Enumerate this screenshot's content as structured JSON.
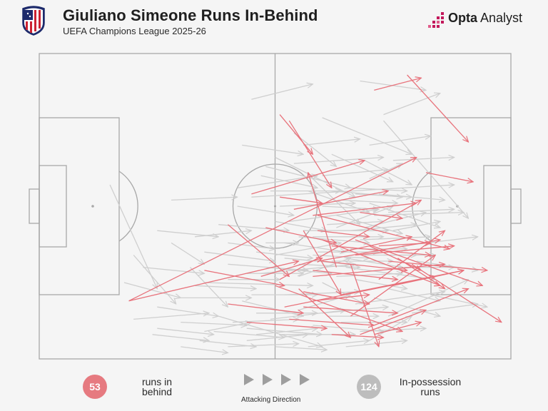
{
  "header": {
    "title": "Giuliano Simeone Runs In-Behind",
    "subtitle": "UEFA Champions League 2025-26",
    "brand_bold": "Opta",
    "brand_rest": " Analyst"
  },
  "legend": {
    "runs_in_behind_count": "53",
    "runs_in_behind_label_1": "runs in",
    "runs_in_behind_label_2": "behind",
    "in_possession_count": "124",
    "in_possession_label_1": "In-possession",
    "in_possession_label_2": "runs",
    "direction_label": "Attacking Direction"
  },
  "colors": {
    "in_behind": "#e8737c",
    "in_possession": "#cfcfcf",
    "pitch_lines": "#a8a8a8",
    "background": "#f5f5f5"
  },
  "chart_data": {
    "type": "scatter",
    "pitch": {
      "length": 100,
      "width": 100,
      "attacking_direction": "left-to-right"
    },
    "series": [
      {
        "name": "runs in behind",
        "runs": [
          [
            19,
            81,
            55,
            68
          ],
          [
            19,
            81,
            80,
            34
          ],
          [
            45,
            46,
            69,
            35
          ],
          [
            53,
            22,
            62,
            44
          ],
          [
            51,
            20,
            58,
            33
          ],
          [
            56,
            58,
            64,
            79
          ],
          [
            63,
            70,
            57,
            39
          ],
          [
            71,
            12,
            81,
            8
          ],
          [
            78,
            7,
            91,
            29
          ],
          [
            66,
            69,
            72,
            96
          ],
          [
            55,
            77,
            66,
            93
          ],
          [
            40,
            56,
            53,
            73
          ],
          [
            59,
            68,
            85,
            61
          ],
          [
            67,
            61,
            94,
            76
          ],
          [
            82,
            39,
            92,
            42
          ],
          [
            58,
            53,
            80,
            49
          ],
          [
            54,
            51,
            74,
            45
          ],
          [
            51,
            74,
            81,
            48
          ],
          [
            58,
            73,
            86,
            69
          ],
          [
            72,
            74,
            86,
            58
          ],
          [
            68,
            92,
            82,
            84
          ],
          [
            58,
            81,
            70,
            79
          ],
          [
            50,
            76,
            77,
            91
          ],
          [
            64,
            79,
            90,
            71
          ],
          [
            52,
            83,
            84,
            73
          ],
          [
            66,
            86,
            84,
            66
          ],
          [
            71,
            89,
            91,
            77
          ],
          [
            60,
            68,
            78,
            71
          ],
          [
            76,
            67,
            86,
            77
          ],
          [
            67,
            66,
            88,
            63
          ],
          [
            79,
            69,
            98,
            88
          ],
          [
            74,
            68,
            95,
            71
          ],
          [
            75,
            76,
            90,
            71
          ],
          [
            62,
            63,
            83,
            66
          ],
          [
            59,
            53,
            87,
            64
          ],
          [
            60,
            61,
            85,
            76
          ],
          [
            56,
            78,
            70,
            82
          ],
          [
            53,
            87,
            71,
            89
          ],
          [
            71,
            92,
            81,
            88
          ],
          [
            62,
            92,
            73,
            93
          ],
          [
            56,
            83,
            76,
            85
          ],
          [
            47,
            73,
            60,
            67
          ],
          [
            64,
            65,
            79,
            60
          ],
          [
            72,
            63,
            83,
            62
          ],
          [
            68,
            52,
            77,
            54
          ],
          [
            70,
            63,
            81,
            71
          ],
          [
            51,
            47,
            60,
            49
          ],
          [
            59,
            58,
            70,
            60
          ],
          [
            48,
            57,
            63,
            62
          ],
          [
            58,
            71,
            76,
            74
          ],
          [
            44,
            88,
            61,
            90
          ],
          [
            40,
            82,
            56,
            85
          ],
          [
            35,
            71,
            52,
            76
          ]
        ]
      },
      {
        "name": "in-possession runs",
        "runs": [
          [
            45,
            15,
            58,
            10
          ],
          [
            48,
            62,
            55,
            62
          ],
          [
            28,
            48,
            42,
            47
          ],
          [
            20,
            66,
            29,
            82
          ],
          [
            48,
            37,
            66,
            44
          ],
          [
            15,
            43,
            25,
            77
          ],
          [
            45,
            47,
            88,
            43
          ],
          [
            73,
            20,
            85,
            13
          ],
          [
            68,
            9,
            82,
            12
          ],
          [
            60,
            21,
            79,
            33
          ],
          [
            73,
            22,
            91,
            54
          ],
          [
            69,
            35,
            79,
            43
          ],
          [
            50,
            34,
            67,
            47
          ],
          [
            42,
            44,
            59,
            40
          ],
          [
            74,
            77,
            85,
            81
          ],
          [
            50,
            55,
            61,
            58
          ],
          [
            62,
            45,
            77,
            47
          ],
          [
            58,
            41,
            68,
            56
          ],
          [
            53,
            55,
            72,
            51
          ],
          [
            60,
            75,
            69,
            82
          ],
          [
            55,
            84,
            66,
            79
          ],
          [
            46,
            85,
            59,
            85
          ],
          [
            43,
            81,
            56,
            86
          ],
          [
            47,
            72,
            67,
            69
          ],
          [
            55,
            73,
            66,
            67
          ],
          [
            70,
            49,
            85,
            57
          ],
          [
            69,
            57,
            82,
            52
          ],
          [
            63,
            53,
            77,
            59
          ],
          [
            50,
            66,
            64,
            62
          ],
          [
            70,
            41,
            77,
            36
          ],
          [
            59,
            65,
            72,
            65
          ],
          [
            40,
            69,
            57,
            71
          ],
          [
            35,
            75,
            58,
            76
          ],
          [
            37,
            91,
            52,
            93
          ],
          [
            44,
            94,
            57,
            92
          ],
          [
            38,
            86,
            60,
            96
          ],
          [
            30,
            88,
            44,
            89
          ],
          [
            25,
            83,
            38,
            86
          ],
          [
            22,
            70,
            35,
            72
          ],
          [
            25,
            58,
            38,
            60
          ],
          [
            33,
            60,
            45,
            58
          ],
          [
            40,
            62,
            50,
            64
          ],
          [
            62,
            33,
            75,
            42
          ],
          [
            54,
            26,
            63,
            37
          ],
          [
            63,
            57,
            75,
            50
          ],
          [
            57,
            45,
            70,
            52
          ],
          [
            65,
            67,
            77,
            70
          ],
          [
            67,
            82,
            86,
            78
          ],
          [
            74,
            86,
            91,
            74
          ],
          [
            70,
            94,
            79,
            86
          ],
          [
            49,
            87,
            65,
            84
          ],
          [
            51,
            92,
            67,
            92
          ],
          [
            58,
            89,
            73,
            91
          ],
          [
            60,
            85,
            74,
            83
          ],
          [
            56,
            58,
            74,
            58
          ],
          [
            68,
            61,
            83,
            60
          ],
          [
            71,
            53,
            90,
            52
          ],
          [
            42,
            50,
            54,
            53
          ],
          [
            49,
            45,
            64,
            45
          ],
          [
            25,
            90,
            37,
            92
          ],
          [
            30,
            80,
            45,
            80
          ],
          [
            18,
            75,
            30,
            80
          ],
          [
            20,
            87,
            36,
            85
          ],
          [
            35,
            91,
            45,
            88
          ],
          [
            40,
            96,
            55,
            95
          ],
          [
            45,
            79,
            59,
            79
          ],
          [
            52,
            79,
            68,
            78
          ],
          [
            63,
            73,
            77,
            72
          ],
          [
            65,
            70,
            84,
            74
          ],
          [
            67,
            74,
            78,
            77
          ],
          [
            55,
            69,
            68,
            70
          ],
          [
            52,
            62,
            65,
            65
          ],
          [
            46,
            65,
            58,
            67
          ],
          [
            58,
            60,
            73,
            60
          ],
          [
            61,
            56,
            73,
            55
          ],
          [
            75,
            58,
            85,
            55
          ],
          [
            77,
            63,
            93,
            60
          ],
          [
            80,
            68,
            93,
            71
          ],
          [
            83,
            79,
            95,
            83
          ],
          [
            79,
            85,
            93,
            82
          ],
          [
            54,
            36,
            73,
            34
          ],
          [
            51,
            50,
            67,
            49
          ],
          [
            55,
            60,
            70,
            62
          ],
          [
            66,
            58,
            80,
            56
          ],
          [
            70,
            30,
            83,
            27
          ],
          [
            75,
            35,
            88,
            34
          ],
          [
            64,
            88,
            78,
            88
          ],
          [
            68,
            91,
            82,
            90
          ],
          [
            46,
            92,
            59,
            90
          ],
          [
            41,
            88,
            55,
            87
          ],
          [
            32,
            70,
            40,
            83
          ],
          [
            28,
            62,
            35,
            69
          ],
          [
            35,
            65,
            50,
            68
          ],
          [
            38,
            56,
            53,
            58
          ],
          [
            47,
            40,
            59,
            44
          ],
          [
            43,
            30,
            56,
            33
          ],
          [
            56,
            30,
            68,
            28
          ],
          [
            60,
            40,
            74,
            38
          ],
          [
            66,
            44,
            78,
            45
          ],
          [
            72,
            46,
            86,
            48
          ],
          [
            74,
            52,
            88,
            51
          ],
          [
            76,
            70,
            88,
            70
          ],
          [
            71,
            80,
            85,
            86
          ],
          [
            65,
            96,
            78,
            94
          ],
          [
            57,
            96,
            70,
            94
          ],
          [
            50,
            96,
            61,
            97
          ],
          [
            44,
            90,
            60,
            92
          ],
          [
            34,
            94,
            46,
            96
          ],
          [
            30,
            96,
            40,
            98
          ],
          [
            24,
            92,
            36,
            94
          ],
          [
            33,
            76,
            46,
            77
          ],
          [
            40,
            74,
            51,
            74
          ],
          [
            44,
            72,
            56,
            72
          ],
          [
            48,
            70,
            62,
            72
          ],
          [
            52,
            67,
            66,
            69
          ],
          [
            58,
            66,
            70,
            67
          ],
          [
            62,
            68,
            75,
            68
          ],
          [
            66,
            64,
            78,
            64
          ],
          [
            69,
            66,
            80,
            66
          ],
          [
            73,
            66,
            84,
            66
          ],
          [
            60,
            50,
            72,
            51
          ],
          [
            64,
            48,
            76,
            49
          ],
          [
            67,
            46,
            79,
            47
          ],
          [
            61,
            86,
            72,
            86
          ]
        ]
      }
    ],
    "xlabel": "",
    "ylabel": "",
    "grid": false
  }
}
